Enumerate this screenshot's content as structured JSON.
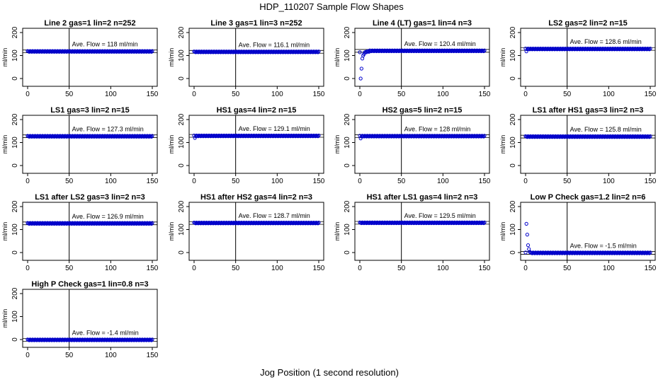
{
  "figure": {
    "title": "HDP_110207  Sample Flow Shapes",
    "xlabel": "Jog Position (1 second resolution)"
  },
  "chart_data": [
    {
      "type": "scatter",
      "title": "Line 2 gas=1 lin=2 n=252",
      "ylabel": "ml/min",
      "annotation": "Ave. Flow =  118  ml/min",
      "mean": 118,
      "vline": 50,
      "xlim": [
        0,
        150
      ],
      "ylim": [
        0,
        200
      ],
      "xticks": [
        "0",
        "50",
        "100",
        "150"
      ],
      "yticks": [
        "0",
        "100",
        "200"
      ],
      "shape": "flat",
      "x_range": [
        0,
        150
      ],
      "startup": []
    },
    {
      "type": "scatter",
      "title": "Line 3 gas=1 lin=3 n=252",
      "ylabel": "ml/min",
      "annotation": "Ave. Flow =  116.1  ml/min",
      "mean": 116.1,
      "vline": 50,
      "xlim": [
        0,
        150
      ],
      "ylim": [
        0,
        200
      ],
      "xticks": [
        "0",
        "50",
        "100",
        "150"
      ],
      "yticks": [
        "0",
        "100",
        "200"
      ],
      "shape": "flat",
      "x_range": [
        0,
        150
      ],
      "startup": []
    },
    {
      "type": "scatter",
      "title": "Line 4 (LT) gas=1 lin=4 n=3",
      "ylabel": "ml/min",
      "annotation": "Ave. Flow =  120.4  ml/min",
      "mean": 120.4,
      "vline": 50,
      "xlim": [
        0,
        150
      ],
      "ylim": [
        0,
        200
      ],
      "xticks": [
        "0",
        "50",
        "100",
        "150"
      ],
      "yticks": [
        "0",
        "100",
        "200"
      ],
      "shape": "rise",
      "x_range": [
        0,
        150
      ],
      "startup": [
        [
          1,
          0
        ],
        [
          2,
          45
        ],
        [
          3,
          85
        ],
        [
          4,
          100
        ],
        [
          5,
          108
        ],
        [
          6,
          112
        ],
        [
          8,
          116
        ]
      ]
    },
    {
      "type": "scatter",
      "title": "LS2 gas=2 lin=2 n=15",
      "ylabel": "ml/min",
      "annotation": "Ave. Flow =  128.6  ml/min",
      "mean": 128.6,
      "vline": 50,
      "xlim": [
        0,
        150
      ],
      "ylim": [
        0,
        200
      ],
      "xticks": [
        "0",
        "50",
        "100",
        "150"
      ],
      "yticks": [
        "0",
        "100",
        "200"
      ],
      "shape": "flat",
      "x_range": [
        0,
        150
      ],
      "startup": [
        [
          1,
          118
        ]
      ]
    },
    {
      "type": "scatter",
      "title": "LS1 gas=3 lin=2 n=15",
      "ylabel": "ml/min",
      "annotation": "Ave. Flow =  127.3  ml/min",
      "mean": 127.3,
      "vline": 50,
      "xlim": [
        0,
        150
      ],
      "ylim": [
        0,
        200
      ],
      "xticks": [
        "0",
        "50",
        "100",
        "150"
      ],
      "yticks": [
        "0",
        "100",
        "200"
      ],
      "shape": "flat",
      "x_range": [
        0,
        150
      ],
      "startup": []
    },
    {
      "type": "scatter",
      "title": "HS1 gas=4 lin=2 n=15",
      "ylabel": "ml/min",
      "annotation": "Ave. Flow =  129.1  ml/min",
      "mean": 129.1,
      "vline": 50,
      "xlim": [
        0,
        150
      ],
      "ylim": [
        0,
        200
      ],
      "xticks": [
        "0",
        "50",
        "100",
        "150"
      ],
      "yticks": [
        "0",
        "100",
        "200"
      ],
      "shape": "flat",
      "x_range": [
        0,
        150
      ],
      "startup": [
        [
          1,
          120
        ]
      ]
    },
    {
      "type": "scatter",
      "title": "HS2 gas=5 lin=2 n=15",
      "ylabel": "ml/min",
      "annotation": "Ave. Flow =  128  ml/min",
      "mean": 128,
      "vline": 50,
      "xlim": [
        0,
        150
      ],
      "ylim": [
        0,
        200
      ],
      "xticks": [
        "0",
        "50",
        "100",
        "150"
      ],
      "yticks": [
        "0",
        "100",
        "200"
      ],
      "shape": "flat",
      "x_range": [
        0,
        150
      ],
      "startup": [
        [
          1,
          118
        ]
      ]
    },
    {
      "type": "scatter",
      "title": "LS1 after HS1 gas=3 lin=2 n=3",
      "ylabel": "ml/min",
      "annotation": "Ave. Flow =  125.8  ml/min",
      "mean": 125.8,
      "vline": 50,
      "xlim": [
        0,
        150
      ],
      "ylim": [
        0,
        200
      ],
      "xticks": [
        "0",
        "50",
        "100",
        "150"
      ],
      "yticks": [
        "0",
        "100",
        "200"
      ],
      "shape": "flat",
      "x_range": [
        0,
        150
      ],
      "startup": []
    },
    {
      "type": "scatter",
      "title": "LS1 after LS2 gas=3 lin=2 n=3",
      "ylabel": "ml/min",
      "annotation": "Ave. Flow =  126.9  ml/min",
      "mean": 126.9,
      "vline": 50,
      "xlim": [
        0,
        150
      ],
      "ylim": [
        0,
        200
      ],
      "xticks": [
        "0",
        "50",
        "100",
        "150"
      ],
      "yticks": [
        "0",
        "100",
        "200"
      ],
      "shape": "flat",
      "x_range": [
        0,
        150
      ],
      "startup": []
    },
    {
      "type": "scatter",
      "title": "HS1 after HS2 gas=4 lin=2 n=3",
      "ylabel": "ml/min",
      "annotation": "Ave. Flow =  128.7  ml/min",
      "mean": 128.7,
      "vline": 50,
      "xlim": [
        0,
        150
      ],
      "ylim": [
        0,
        200
      ],
      "xticks": [
        "0",
        "50",
        "100",
        "150"
      ],
      "yticks": [
        "0",
        "100",
        "200"
      ],
      "shape": "flat",
      "x_range": [
        0,
        150
      ],
      "startup": []
    },
    {
      "type": "scatter",
      "title": "HS1 after LS1 gas=4 lin=2 n=3",
      "ylabel": "ml/min",
      "annotation": "Ave. Flow =  129.5  ml/min",
      "mean": 129.5,
      "vline": 50,
      "xlim": [
        0,
        150
      ],
      "ylim": [
        0,
        200
      ],
      "xticks": [
        "0",
        "50",
        "100",
        "150"
      ],
      "yticks": [
        "0",
        "100",
        "200"
      ],
      "shape": "flat",
      "x_range": [
        0,
        150
      ],
      "startup": []
    },
    {
      "type": "scatter",
      "title": "Low P Check gas=1.2 lin=2 n=6",
      "ylabel": "ml/min",
      "annotation": "Ave. Flow =  -1.5  ml/min",
      "mean": -1.5,
      "vline": 50,
      "xlim": [
        0,
        150
      ],
      "ylim": [
        0,
        200
      ],
      "xticks": [
        "0",
        "50",
        "100",
        "150"
      ],
      "yticks": [
        "0",
        "100",
        "200"
      ],
      "shape": "decay",
      "x_range": [
        0,
        150
      ],
      "startup": [
        [
          1,
          125
        ],
        [
          2,
          80
        ],
        [
          3,
          30
        ],
        [
          4,
          15
        ],
        [
          5,
          5
        ]
      ]
    },
    {
      "type": "scatter",
      "title": "High P Check gas=1 lin=0.8 n=3",
      "ylabel": "ml/min",
      "annotation": "Ave. Flow =  -1.4  ml/min",
      "mean": -1.4,
      "vline": 50,
      "xlim": [
        0,
        150
      ],
      "ylim": [
        0,
        200
      ],
      "xticks": [
        "0",
        "50",
        "100",
        "150"
      ],
      "yticks": [
        "0",
        "100",
        "200"
      ],
      "shape": "flat",
      "x_range": [
        0,
        150
      ],
      "startup": []
    }
  ],
  "colors": {
    "points": "#0000cc",
    "axes": "#000000",
    "background": "#ffffff"
  }
}
